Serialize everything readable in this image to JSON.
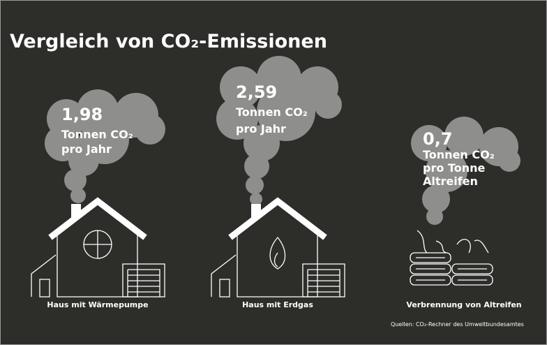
{
  "title": "Vergleich von CO₂-Emissionen",
  "items": [
    {
      "value": "1,98",
      "unit": [
        "Tonnen CO₂",
        "pro Jahr"
      ],
      "label": "Haus mit Wärmepumpe"
    },
    {
      "value": "2,59",
      "unit": [
        "Tonnen CO₂",
        "pro Jahr"
      ],
      "label": "Haus mit Erdgas"
    },
    {
      "value": "0,7",
      "unit": [
        "Tonnen CO₂",
        "pro Tonne",
        "Altreifen"
      ],
      "label": "Verbrennung von Altreifen"
    }
  ],
  "source": "Quellen: CO₂-Rechner des Umweltbundesamtes"
}
